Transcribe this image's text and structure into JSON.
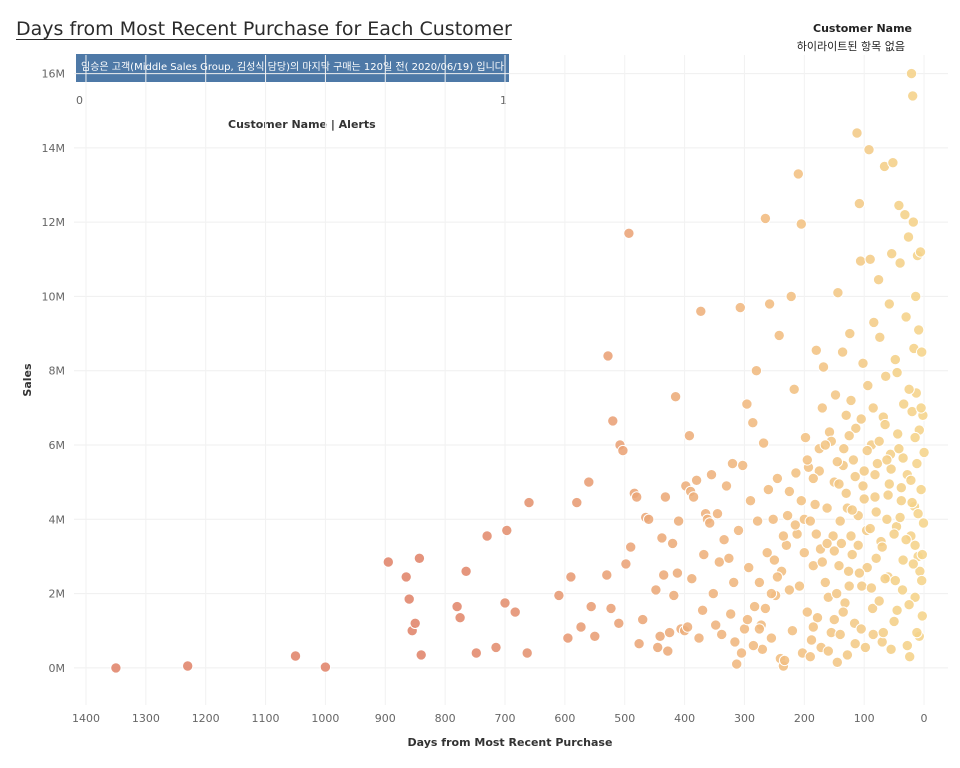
{
  "title": "Days from Most Recent Purchase for Each Customer",
  "legend": {
    "title": "Customer Name",
    "subtitle": "하이라이트된 항목 없음"
  },
  "banner": {
    "text": "임승은 고객(Middle Sales Group,  김성식 담당)의 마지막 구매는 120일 전( 2020/06/19) 입니다",
    "color": "#4e79a7"
  },
  "alerts_axis": {
    "label": "Customer Name | Alerts",
    "min_label": "0",
    "max_label": "1"
  },
  "chart_data": {
    "type": "scatter",
    "title": "Days from Most Recent Purchase for Each Customer",
    "xlabel": "Days from Most Recent Purchase",
    "ylabel": "Sales",
    "xlim": [
      1420,
      -40
    ],
    "ylim": [
      -1,
      16.5
    ],
    "x_reversed": true,
    "x_ticks": [
      1400,
      1300,
      1200,
      1100,
      1000,
      900,
      800,
      700,
      600,
      500,
      400,
      300,
      200,
      100,
      0
    ],
    "y_ticks": [
      "0M",
      "2M",
      "4M",
      "6M",
      "8M",
      "10M",
      "12M",
      "14M",
      "16M"
    ],
    "y_tick_values": [
      0,
      2,
      4,
      6,
      8,
      10,
      12,
      14,
      16
    ],
    "y_unit": "M",
    "grid": true,
    "color_scale": {
      "near": "#f5d48a",
      "mid": "#f0b87f",
      "far": "#e0846a"
    },
    "points": [
      [
        1350,
        0.0
      ],
      [
        1230,
        0.05
      ],
      [
        1050,
        0.32
      ],
      [
        1000,
        0.02
      ],
      [
        895,
        2.85
      ],
      [
        865,
        2.45
      ],
      [
        860,
        1.85
      ],
      [
        855,
        1.0
      ],
      [
        850,
        1.2
      ],
      [
        843,
        2.95
      ],
      [
        840,
        0.35
      ],
      [
        780,
        1.65
      ],
      [
        775,
        1.35
      ],
      [
        765,
        2.6
      ],
      [
        748,
        0.4
      ],
      [
        730,
        3.55
      ],
      [
        715,
        0.55
      ],
      [
        700,
        1.75
      ],
      [
        697,
        3.7
      ],
      [
        683,
        1.5
      ],
      [
        663,
        0.4
      ],
      [
        660,
        4.45
      ],
      [
        610,
        1.95
      ],
      [
        595,
        0.8
      ],
      [
        590,
        2.45
      ],
      [
        580,
        4.45
      ],
      [
        573,
        1.1
      ],
      [
        560,
        5.0
      ],
      [
        556,
        1.65
      ],
      [
        550,
        0.85
      ],
      [
        530,
        2.5
      ],
      [
        528,
        8.4
      ],
      [
        523,
        1.6
      ],
      [
        520,
        6.65
      ],
      [
        510,
        1.2
      ],
      [
        508,
        6.0
      ],
      [
        503,
        5.85
      ],
      [
        498,
        2.8
      ],
      [
        493,
        11.7
      ],
      [
        490,
        3.25
      ],
      [
        484,
        4.7
      ],
      [
        480,
        4.6
      ],
      [
        476,
        0.65
      ],
      [
        470,
        1.3
      ],
      [
        465,
        4.05
      ],
      [
        460,
        4.0
      ],
      [
        448,
        2.1
      ],
      [
        445,
        0.55
      ],
      [
        441,
        0.85
      ],
      [
        438,
        3.5
      ],
      [
        435,
        2.5
      ],
      [
        432,
        4.6
      ],
      [
        428,
        0.45
      ],
      [
        425,
        0.95
      ],
      [
        420,
        3.35
      ],
      [
        418,
        1.95
      ],
      [
        415,
        7.3
      ],
      [
        412,
        2.55
      ],
      [
        410,
        3.95
      ],
      [
        406,
        1.05
      ],
      [
        400,
        1.0
      ],
      [
        398,
        4.9
      ],
      [
        395,
        1.1
      ],
      [
        392,
        6.25
      ],
      [
        390,
        4.75
      ],
      [
        388,
        2.4
      ],
      [
        385,
        4.6
      ],
      [
        380,
        5.05
      ],
      [
        376,
        0.8
      ],
      [
        373,
        9.6
      ],
      [
        370,
        1.55
      ],
      [
        368,
        3.05
      ],
      [
        365,
        4.15
      ],
      [
        362,
        4.0
      ],
      [
        358,
        3.9
      ],
      [
        355,
        5.2
      ],
      [
        352,
        2.0
      ],
      [
        348,
        1.15
      ],
      [
        345,
        4.15
      ],
      [
        342,
        2.85
      ],
      [
        338,
        0.9
      ],
      [
        334,
        3.45
      ],
      [
        330,
        4.9
      ],
      [
        326,
        2.95
      ],
      [
        323,
        1.45
      ],
      [
        320,
        5.5
      ],
      [
        316,
        0.7
      ],
      [
        313,
        0.1
      ],
      [
        310,
        3.7
      ],
      [
        307,
        9.7
      ],
      [
        303,
        5.45
      ],
      [
        300,
        1.05
      ],
      [
        296,
        7.1
      ],
      [
        293,
        2.7
      ],
      [
        290,
        4.5
      ],
      [
        286,
        6.6
      ],
      [
        283,
        1.65
      ],
      [
        280,
        8.0
      ],
      [
        278,
        3.95
      ],
      [
        275,
        2.3
      ],
      [
        272,
        1.15
      ],
      [
        270,
        0.5
      ],
      [
        268,
        6.05
      ],
      [
        265,
        12.1
      ],
      [
        262,
        3.1
      ],
      [
        260,
        4.8
      ],
      [
        258,
        9.8
      ],
      [
        255,
        0.8
      ],
      [
        252,
        4.0
      ],
      [
        250,
        2.9
      ],
      [
        248,
        1.95
      ],
      [
        245,
        5.1
      ],
      [
        242,
        8.95
      ],
      [
        240,
        0.25
      ],
      [
        238,
        2.6
      ],
      [
        235,
        0.05
      ],
      [
        233,
        0.2
      ],
      [
        230,
        3.3
      ],
      [
        228,
        4.1
      ],
      [
        225,
        2.1
      ],
      [
        222,
        10.0
      ],
      [
        220,
        1.0
      ],
      [
        217,
        7.5
      ],
      [
        214,
        5.25
      ],
      [
        212,
        3.6
      ],
      [
        210,
        13.3
      ],
      [
        208,
        2.2
      ],
      [
        205,
        11.95
      ],
      [
        203,
        0.4
      ],
      [
        200,
        4.0
      ],
      [
        198,
        6.2
      ],
      [
        195,
        1.5
      ],
      [
        193,
        5.4
      ],
      [
        190,
        3.95
      ],
      [
        188,
        0.75
      ],
      [
        185,
        2.75
      ],
      [
        182,
        4.4
      ],
      [
        180,
        8.55
      ],
      [
        178,
        1.35
      ],
      [
        175,
        5.3
      ],
      [
        173,
        3.2
      ],
      [
        170,
        7.0
      ],
      [
        168,
        8.1
      ],
      [
        165,
        2.3
      ],
      [
        162,
        4.3
      ],
      [
        160,
        1.9
      ],
      [
        158,
        6.35
      ],
      [
        155,
        0.95
      ],
      [
        152,
        3.55
      ],
      [
        150,
        5.0
      ],
      [
        148,
        7.35
      ],
      [
        146,
        2.0
      ],
      [
        144,
        10.1
      ],
      [
        142,
        4.95
      ],
      [
        140,
        0.9
      ],
      [
        138,
        3.35
      ],
      [
        136,
        8.5
      ],
      [
        134,
        5.9
      ],
      [
        132,
        1.75
      ],
      [
        130,
        6.8
      ],
      [
        128,
        4.3
      ],
      [
        126,
        2.6
      ],
      [
        124,
        9.0
      ],
      [
        122,
        7.2
      ],
      [
        120,
        3.05
      ],
      [
        118,
        5.6
      ],
      [
        116,
        1.2
      ],
      [
        114,
        6.45
      ],
      [
        112,
        14.4
      ],
      [
        110,
        4.1
      ],
      [
        108,
        12.5
      ],
      [
        106,
        10.95
      ],
      [
        104,
        2.2
      ],
      [
        102,
        8.2
      ],
      [
        100,
        5.3
      ],
      [
        98,
        0.55
      ],
      [
        96,
        3.7
      ],
      [
        94,
        7.6
      ],
      [
        92,
        13.95
      ],
      [
        90,
        11.0
      ],
      [
        88,
        6.0
      ],
      [
        86,
        1.6
      ],
      [
        84,
        9.3
      ],
      [
        82,
        4.6
      ],
      [
        80,
        2.95
      ],
      [
        78,
        5.5
      ],
      [
        76,
        10.45
      ],
      [
        74,
        8.9
      ],
      [
        72,
        3.4
      ],
      [
        70,
        0.7
      ],
      [
        68,
        6.75
      ],
      [
        66,
        13.5
      ],
      [
        64,
        7.85
      ],
      [
        62,
        4.0
      ],
      [
        60,
        2.45
      ],
      [
        58,
        9.8
      ],
      [
        56,
        5.75
      ],
      [
        54,
        11.15
      ],
      [
        52,
        13.6
      ],
      [
        50,
        1.25
      ],
      [
        48,
        8.3
      ],
      [
        46,
        3.8
      ],
      [
        44,
        6.3
      ],
      [
        42,
        12.45
      ],
      [
        40,
        10.9
      ],
      [
        38,
        4.85
      ],
      [
        36,
        2.1
      ],
      [
        34,
        7.1
      ],
      [
        32,
        12.2
      ],
      [
        30,
        9.45
      ],
      [
        28,
        5.2
      ],
      [
        26,
        11.6
      ],
      [
        24,
        0.3
      ],
      [
        22,
        3.55
      ],
      [
        21,
        16.0
      ],
      [
        20,
        6.9
      ],
      [
        19,
        15.4
      ],
      [
        18,
        12.0
      ],
      [
        17,
        8.6
      ],
      [
        16,
        4.35
      ],
      [
        15,
        1.9
      ],
      [
        14,
        10.0
      ],
      [
        13,
        7.4
      ],
      [
        12,
        5.5
      ],
      [
        11,
        11.1
      ],
      [
        10,
        3.0
      ],
      [
        9,
        9.1
      ],
      [
        8,
        6.4
      ],
      [
        7,
        2.6
      ],
      [
        6,
        11.2
      ],
      [
        5,
        4.8
      ],
      [
        4,
        8.5
      ],
      [
        3,
        1.4
      ],
      [
        2,
        6.8
      ],
      [
        1,
        3.9
      ],
      [
        0,
        5.8
      ],
      [
        190,
        0.3
      ],
      [
        185,
        1.1
      ],
      [
        172,
        0.55
      ],
      [
        160,
        0.45
      ],
      [
        145,
        0.15
      ],
      [
        135,
        1.5
      ],
      [
        125,
        2.2
      ],
      [
        115,
        0.65
      ],
      [
        105,
        1.05
      ],
      [
        95,
        2.7
      ],
      [
        85,
        0.9
      ],
      [
        75,
        1.8
      ],
      [
        65,
        2.4
      ],
      [
        55,
        0.5
      ],
      [
        45,
        1.55
      ],
      [
        35,
        2.9
      ],
      [
        25,
        1.7
      ],
      [
        15,
        3.3
      ],
      [
        8,
        0.85
      ],
      [
        4,
        2.35
      ],
      [
        200,
        3.1
      ],
      [
        180,
        3.6
      ],
      [
        170,
        2.85
      ],
      [
        150,
        3.15
      ],
      [
        140,
        3.95
      ],
      [
        130,
        4.7
      ],
      [
        120,
        4.25
      ],
      [
        110,
        3.3
      ],
      [
        100,
        4.55
      ],
      [
        90,
        3.75
      ],
      [
        80,
        4.2
      ],
      [
        70,
        3.25
      ],
      [
        60,
        4.65
      ],
      [
        50,
        3.6
      ],
      [
        40,
        4.05
      ],
      [
        30,
        3.45
      ],
      [
        20,
        4.45
      ],
      [
        10,
        4.15
      ],
      [
        195,
        5.6
      ],
      [
        175,
        5.9
      ],
      [
        155,
        6.1
      ],
      [
        135,
        5.45
      ],
      [
        115,
        5.15
      ],
      [
        95,
        5.85
      ],
      [
        75,
        6.1
      ],
      [
        55,
        5.35
      ],
      [
        35,
        5.65
      ],
      [
        15,
        6.2
      ],
      [
        5,
        7.0
      ],
      [
        25,
        7.5
      ],
      [
        45,
        7.95
      ],
      [
        65,
        6.55
      ],
      [
        85,
        7.0
      ],
      [
        105,
        6.7
      ],
      [
        125,
        6.25
      ],
      [
        145,
        5.55
      ],
      [
        165,
        6.0
      ],
      [
        185,
        5.1
      ],
      [
        205,
        4.5
      ],
      [
        215,
        3.85
      ],
      [
        225,
        4.75
      ],
      [
        235,
        3.55
      ],
      [
        245,
        2.45
      ],
      [
        255,
        2.0
      ],
      [
        265,
        1.6
      ],
      [
        275,
        1.05
      ],
      [
        285,
        0.6
      ],
      [
        295,
        1.3
      ],
      [
        305,
        0.4
      ],
      [
        318,
        2.3
      ],
      [
        150,
        1.3
      ],
      [
        128,
        0.35
      ],
      [
        108,
        2.55
      ],
      [
        88,
        2.15
      ],
      [
        68,
        0.95
      ],
      [
        48,
        2.35
      ],
      [
        28,
        0.6
      ],
      [
        18,
        2.8
      ],
      [
        12,
        0.95
      ],
      [
        3,
        3.05
      ],
      [
        58,
        4.95
      ],
      [
        38,
        4.5
      ],
      [
        22,
        5.05
      ],
      [
        42,
        5.9
      ],
      [
        62,
        5.6
      ],
      [
        82,
        5.2
      ],
      [
        102,
        4.9
      ],
      [
        122,
        3.55
      ],
      [
        142,
        2.75
      ],
      [
        162,
        3.35
      ]
    ]
  }
}
